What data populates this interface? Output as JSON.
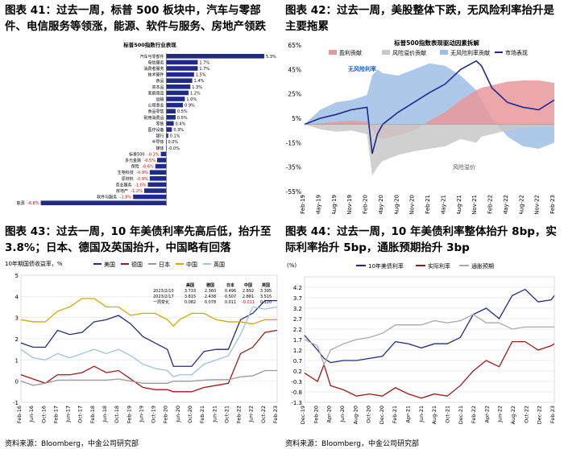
{
  "titles": {
    "t41": "图表 41：过去一周，标普 500 板块中，汽车与零部件、电信服务等领涨，能源、软件与服务、房地产领跌",
    "t42": "图表 42：过去一周，美股整体下跌，无风险利率抬升是主要拖累",
    "t43": "图表 43：过去一周，10 年美债利率先高后低，抬升至 3.8%；日本、德国及英国抬升，中国略有回落",
    "t44": "图表 44：过去一周，10 年美债利率整体抬升 8bp，实际利率抬升 5bp，通胀预期抬升 3bp"
  },
  "sources": {
    "left": "资料来源：Bloomberg，中金公司研究部",
    "right": "资料来源：Bloomberg，中金公司研究部"
  },
  "chart_data": [
    {
      "id": "c41",
      "type": "bar",
      "title": "标普500指数行业表现",
      "orientation": "horizontal",
      "categories": [
        "汽车与零部件",
        "电信服务",
        "消费者服务",
        "技术硬件",
        "食品",
        "资本品",
        "家庭用品",
        "运输",
        "公用事业",
        "食品零售",
        "耐用消费品",
        "零售",
        "医疗设备",
        "银行",
        "半导体",
        "媒体",
        "标普500",
        "多元金融",
        "保险",
        "生物科技",
        "原材料",
        "商业服务",
        "房地产",
        "软件与服务",
        "能源"
      ],
      "values": [
        5.3,
        1.7,
        1.7,
        1.5,
        1.4,
        1.3,
        1.2,
        1.0,
        0.9,
        0.5,
        0.5,
        0.4,
        0.3,
        0.1,
        0.0,
        0.0,
        -0.3,
        -0.5,
        -0.6,
        -0.9,
        -0.9,
        -1.0,
        -1.2,
        -1.8,
        -6.8
      ],
      "labels": [
        "5.3%",
        "1.7%",
        "1.7%",
        "1.5%",
        "1.4%",
        "1.3%",
        "1.2%",
        "1.0%",
        "0.9%",
        "0.5%",
        "0.5%",
        "0.4%",
        "0.3%",
        "0.1%",
        "0.0%",
        "-0.0%",
        "-0.3%",
        "-0.5%",
        "-0.6%",
        "-0.9%",
        "-0.9%",
        "-1.0%",
        "-1.2%",
        "-1.8%",
        "-6.8%"
      ],
      "xlim": [
        -7,
        6
      ]
    },
    {
      "id": "c42",
      "type": "area",
      "title": "标普500指数表现驱动因素拆解",
      "legend": [
        "盈利贡献",
        "风险溢价贡献",
        "无风险利率贡献",
        "市场表现"
      ],
      "colors": {
        "earnings": "#e8989b",
        "premium": "#c8c8c8",
        "riskfree": "#9dc0e6",
        "market": "#1f2a8c"
      },
      "yticks": [
        "65%",
        "45%",
        "25%",
        "5%",
        "-15%",
        "-35%",
        "-55%"
      ],
      "ylim": [
        -55,
        65
      ],
      "xticks": [
        "Feb-19",
        "May-19",
        "Aug-19",
        "Nov-19",
        "Feb-20",
        "May-20",
        "Aug-20",
        "Nov-20",
        "Feb-21",
        "May-21",
        "Aug-21",
        "Nov-21",
        "Feb-22",
        "May-22",
        "Aug-22",
        "Nov-22",
        "Feb-23"
      ],
      "annotations": [
        "无风险利率",
        "风险溢价"
      ],
      "months": [
        0,
        3,
        6,
        9,
        12,
        13,
        14,
        15,
        18,
        21,
        24,
        27,
        30,
        33,
        34,
        36,
        39,
        42,
        45,
        48
      ],
      "earnings": [
        0,
        1,
        2,
        3,
        2,
        -4,
        -10,
        -12,
        -9,
        -5,
        3,
        10,
        20,
        28,
        30,
        32,
        35,
        36,
        36,
        34
      ],
      "premium": [
        0,
        -4,
        -6,
        -5,
        -8,
        -42,
        -35,
        -30,
        -25,
        -22,
        -20,
        -18,
        -12,
        -15,
        -10,
        -8,
        -5,
        -3,
        -2,
        -2
      ],
      "riskfree": [
        0,
        12,
        18,
        20,
        24,
        40,
        45,
        42,
        40,
        45,
        50,
        48,
        40,
        28,
        20,
        5,
        -10,
        -18,
        -20,
        -15
      ],
      "market": [
        0,
        5,
        8,
        12,
        14,
        -24,
        -8,
        0,
        10,
        18,
        26,
        33,
        45,
        52,
        48,
        30,
        18,
        14,
        12,
        20
      ]
    },
    {
      "id": "c43",
      "type": "line",
      "title": "10年期国债收益率，%",
      "legend": [
        "美国",
        "德国",
        "日本",
        "中国",
        "英国"
      ],
      "colors": {
        "美国": "#1f2a8c",
        "德国": "#a01818",
        "日本": "#999999",
        "中国": "#d8a800",
        "英国": "#9dc0e6"
      },
      "ylim": [
        -1,
        5
      ],
      "yticks": [
        "5",
        "4",
        "3",
        "2",
        "1",
        "0",
        "-1"
      ],
      "xticks": [
        "Feb-16",
        "Jun-16",
        "Oct-16",
        "Feb-17",
        "Jun-17",
        "Oct-17",
        "Feb-18",
        "Jun-18",
        "Oct-18",
        "Feb-19",
        "Jun-19",
        "Oct-19",
        "Feb-20",
        "Jun-20",
        "Oct-20",
        "Feb-21",
        "Jun-21",
        "Oct-21",
        "Feb-22",
        "Jun-22",
        "Oct-22",
        "Feb-23"
      ],
      "table": {
        "header": [
          "",
          "美国",
          "德国",
          "日本",
          "中国",
          "英国"
        ],
        "rows": [
          [
            "2023/2/10",
            "3.733",
            "2.360",
            "0.496",
            "2.892",
            "3.395"
          ],
          [
            "2023/2/17",
            "3.815",
            "2.438",
            "0.507",
            "2.881",
            "3.515"
          ],
          [
            "一周变化",
            "0.082",
            "0.078",
            "0.011",
            "-0.011",
            "0.120"
          ]
        ]
      },
      "months": [
        0,
        4,
        8,
        12,
        16,
        20,
        24,
        28,
        32,
        36,
        40,
        44,
        48,
        50,
        52,
        56,
        60,
        64,
        68,
        72,
        76,
        80,
        84
      ],
      "series": {
        "美国": [
          1.8,
          1.6,
          1.6,
          2.4,
          2.2,
          2.3,
          2.8,
          2.9,
          3.1,
          2.7,
          2.1,
          1.8,
          1.5,
          0.7,
          0.7,
          0.7,
          1.4,
          1.5,
          1.5,
          2.9,
          3.2,
          3.8,
          3.8
        ],
        "德国": [
          0.3,
          0.1,
          -0.1,
          0.3,
          0.3,
          0.4,
          0.7,
          0.4,
          0.5,
          0.1,
          -0.3,
          -0.4,
          -0.4,
          -0.5,
          -0.5,
          -0.5,
          -0.3,
          -0.2,
          -0.1,
          1.3,
          1.6,
          2.3,
          2.4
        ],
        "日本": [
          0.0,
          -0.2,
          -0.1,
          0.05,
          0.05,
          0.05,
          0.05,
          0.05,
          0.1,
          0.0,
          -0.1,
          -0.1,
          -0.1,
          0.0,
          0.0,
          0.0,
          0.05,
          0.07,
          0.07,
          0.2,
          0.25,
          0.5,
          0.5
        ],
        "中国": [
          2.9,
          2.8,
          2.8,
          3.3,
          3.5,
          3.9,
          3.9,
          3.5,
          3.5,
          3.1,
          3.2,
          3.2,
          2.9,
          2.6,
          2.9,
          3.2,
          3.2,
          2.9,
          2.8,
          2.8,
          2.7,
          2.9,
          2.9
        ],
        "英国": [
          1.5,
          1.1,
          1.0,
          1.3,
          1.1,
          1.3,
          1.5,
          1.3,
          1.5,
          1.2,
          0.8,
          0.6,
          0.5,
          0.2,
          0.3,
          0.3,
          0.8,
          1.0,
          1.2,
          2.2,
          3.5,
          3.4,
          3.5
        ]
      }
    },
    {
      "id": "c44",
      "type": "line",
      "title": "(%)",
      "legend": [
        "10年美债利率",
        "实际利率",
        "通胀预期"
      ],
      "colors": {
        "10年美债利率": "#1f2a8c",
        "实际利率": "#a01818",
        "通胀预期": "#aaaaaa"
      },
      "ylim": [
        -1.3,
        4.7
      ],
      "yticks": [
        "4.2",
        "3.7",
        "3.2",
        "2.7",
        "2.2",
        "1.7",
        "1.2",
        "0.7",
        "0.2",
        "-0.3",
        "-0.8",
        "-1.3"
      ],
      "xticks": [
        "Dec-19",
        "Feb-20",
        "Apr-20",
        "Jun-20",
        "Aug-20",
        "Oct-20",
        "Dec-20",
        "Feb-21",
        "Apr-21",
        "Jun-21",
        "Aug-21",
        "Oct-21",
        "Dec-21",
        "Feb-22",
        "Apr-22",
        "Jun-22",
        "Aug-22",
        "Oct-22",
        "Dec-22",
        "Feb-23"
      ],
      "months": [
        0,
        2,
        3,
        4,
        6,
        8,
        10,
        12,
        14,
        16,
        18,
        20,
        22,
        24,
        26,
        28,
        30,
        32,
        34,
        36,
        38,
        38.5
      ],
      "series": {
        "10年美债利率": [
          1.9,
          1.2,
          0.8,
          0.6,
          0.7,
          0.7,
          0.8,
          0.9,
          1.6,
          1.5,
          1.3,
          1.5,
          1.5,
          1.8,
          2.9,
          3.2,
          2.7,
          3.8,
          4.1,
          3.5,
          3.6,
          3.8
        ],
        "实际利率": [
          0.1,
          -0.3,
          0.5,
          -0.5,
          -0.7,
          -1.0,
          -0.9,
          -1.0,
          -0.6,
          -0.9,
          -1.1,
          -0.9,
          -1.0,
          -0.5,
          0.2,
          0.7,
          0.4,
          1.6,
          1.6,
          1.2,
          1.4,
          1.5
        ],
        "通胀预期": [
          1.7,
          1.4,
          0.5,
          1.2,
          1.5,
          1.7,
          1.8,
          2.0,
          2.4,
          2.4,
          2.4,
          2.6,
          2.5,
          2.6,
          2.9,
          2.5,
          2.5,
          2.2,
          2.3,
          2.3,
          2.3,
          2.3
        ]
      }
    }
  ]
}
